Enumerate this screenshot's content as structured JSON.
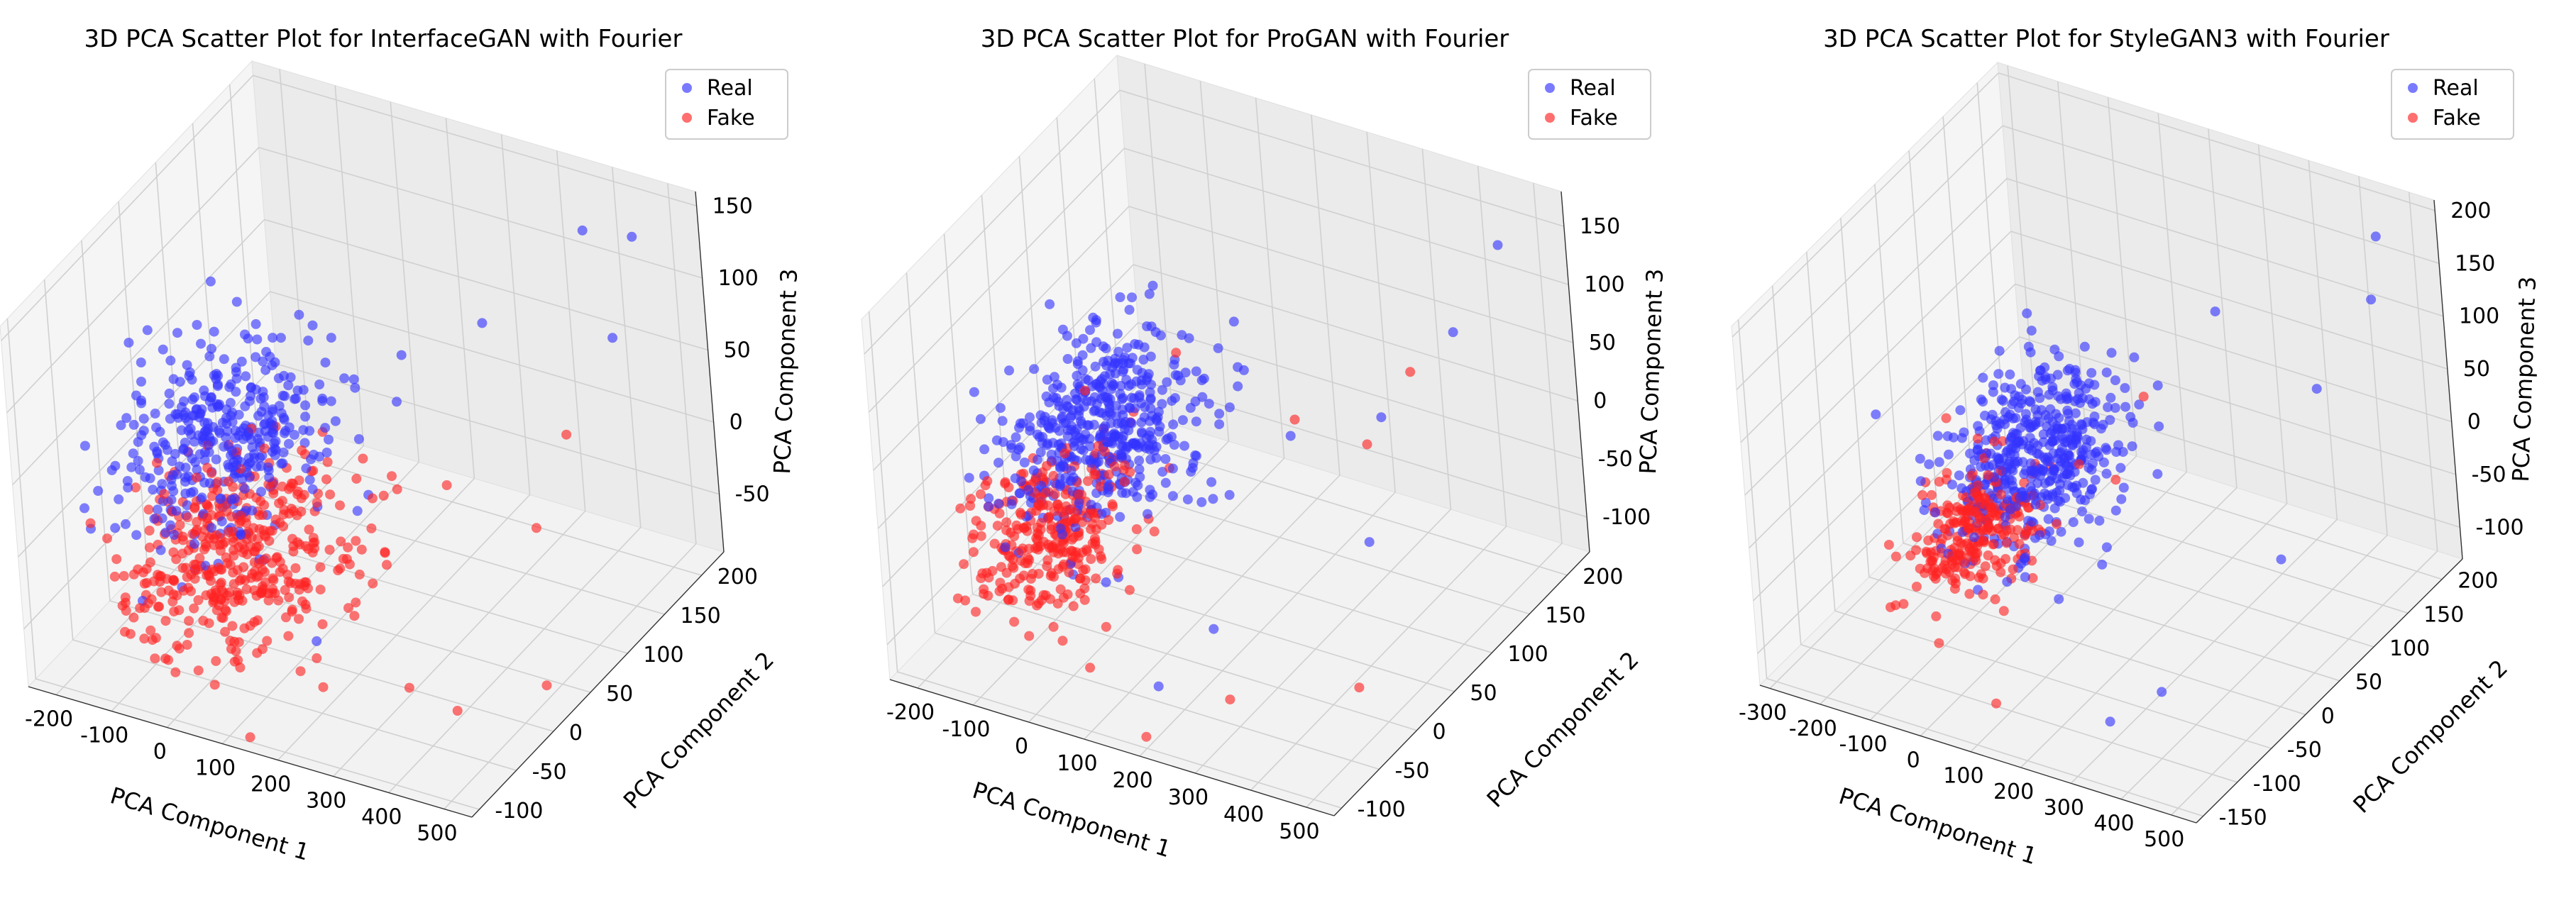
{
  "chart_data": [
    {
      "type": "scatter",
      "title": "3D PCA Scatter Plot for InterfaceGAN with Fourier",
      "xlabel": "PCA Component 1",
      "ylabel": "PCA Component 2",
      "zlabel": "PCA Component 3",
      "xlim": [
        -250,
        550
      ],
      "ylim": [
        -110,
        230
      ],
      "zlim": [
        -90,
        160
      ],
      "xticks": [
        -200,
        -100,
        0,
        100,
        200,
        300,
        400,
        500
      ],
      "yticks": [
        -100,
        -50,
        0,
        50,
        100,
        150,
        200
      ],
      "zticks": [
        -50,
        0,
        50,
        100,
        150
      ],
      "legend": [
        "Real",
        "Fake"
      ],
      "legend_position": "top-right",
      "grid": true,
      "series": [
        {
          "name": "Real",
          "color": "#3333ff",
          "center": [
            -60,
            30,
            30
          ],
          "spread": [
            70,
            45,
            28
          ],
          "count": 380,
          "outliers": [
            [
              500,
              180,
              150
            ],
            [
              420,
              200,
              60
            ],
            [
              -230,
              20,
              -20
            ],
            [
              300,
              120,
              100
            ],
            [
              380,
              200,
              130
            ],
            [
              -180,
              0,
              40
            ],
            [
              250,
              50,
              110
            ],
            [
              200,
              -50,
              -40
            ]
          ]
        },
        {
          "name": "Fake",
          "color": "#ff2222",
          "center": [
            40,
            -30,
            -10
          ],
          "spread": [
            75,
            50,
            22
          ],
          "count": 420,
          "outliers": [
            [
              500,
              30,
              -80
            ],
            [
              450,
              -50,
              -60
            ],
            [
              400,
              100,
              -20
            ],
            [
              250,
              -80,
              -50
            ],
            [
              320,
              -20,
              -75
            ],
            [
              300,
              60,
              20
            ],
            [
              380,
              160,
              10
            ]
          ]
        }
      ]
    },
    {
      "type": "scatter",
      "title": "3D PCA Scatter Plot for ProGAN with Fourier",
      "xlabel": "PCA Component 1",
      "ylabel": "PCA Component 2",
      "zlabel": "PCA Component 3",
      "xlim": [
        -250,
        550
      ],
      "ylim": [
        -110,
        230
      ],
      "zlim": [
        -130,
        180
      ],
      "xticks": [
        -200,
        -100,
        0,
        100,
        200,
        300,
        400,
        500
      ],
      "yticks": [
        -100,
        -50,
        0,
        50,
        100,
        150,
        200
      ],
      "zticks": [
        -100,
        -50,
        0,
        50,
        100,
        150
      ],
      "legend": [
        "Real",
        "Fake"
      ],
      "legend_position": "top-right",
      "grid": true,
      "series": [
        {
          "name": "Real",
          "color": "#3333ff",
          "center": [
            -20,
            20,
            30
          ],
          "spread": [
            65,
            45,
            32
          ],
          "count": 480,
          "outliers": [
            [
              500,
              180,
              160
            ],
            [
              420,
              170,
              80
            ],
            [
              300,
              40,
              60
            ],
            [
              350,
              120,
              30
            ],
            [
              250,
              -40,
              -60
            ],
            [
              200,
              -80,
              -90
            ],
            [
              400,
              60,
              -30
            ]
          ]
        },
        {
          "name": "Fake",
          "color": "#ff2222",
          "center": [
            -40,
            -40,
            -20
          ],
          "spread": [
            55,
            40,
            22
          ],
          "count": 300,
          "outliers": [
            [
              480,
              -20,
              -90
            ],
            [
              300,
              -60,
              -100
            ],
            [
              350,
              100,
              20
            ],
            [
              -230,
              -20,
              -40
            ],
            [
              250,
              80,
              40
            ],
            [
              200,
              -100,
              -120
            ],
            [
              380,
              140,
              60
            ]
          ]
        }
      ]
    },
    {
      "type": "scatter",
      "title": "3D PCA Scatter Plot for StyleGAN3 with Fourier",
      "xlabel": "PCA Component 1",
      "ylabel": "PCA Component 2",
      "zlabel": "PCA Component 3",
      "xlim": [
        -320,
        550
      ],
      "ylim": [
        -160,
        230
      ],
      "zlim": [
        -130,
        210
      ],
      "xticks": [
        -300,
        -200,
        -100,
        0,
        100,
        200,
        300,
        400,
        500
      ],
      "yticks": [
        -150,
        -100,
        -50,
        0,
        50,
        100,
        150,
        200
      ],
      "zticks": [
        -100,
        -50,
        0,
        50,
        100,
        150,
        200
      ],
      "legend": [
        "Real",
        "Fake"
      ],
      "legend_position": "top-right",
      "grid": true,
      "series": [
        {
          "name": "Real",
          "color": "#3333ff",
          "center": [
            10,
            20,
            20
          ],
          "spread": [
            60,
            45,
            35
          ],
          "count": 470,
          "outliers": [
            [
              500,
              180,
              200
            ],
            [
              450,
              200,
              120
            ],
            [
              400,
              150,
              60
            ],
            [
              300,
              -100,
              -110
            ],
            [
              350,
              -60,
              -100
            ],
            [
              -280,
              0,
              30
            ],
            [
              450,
              50,
              -30
            ],
            [
              250,
              120,
              130
            ]
          ]
        },
        {
          "name": "Fake",
          "color": "#ff2222",
          "center": [
            -40,
            -40,
            -20
          ],
          "spread": [
            45,
            35,
            20
          ],
          "count": 260,
          "outliers": [
            [
              100,
              -120,
              -110
            ],
            [
              -150,
              -80,
              -80
            ],
            [
              200,
              0,
              40
            ],
            [
              150,
              80,
              60
            ]
          ]
        }
      ]
    }
  ]
}
